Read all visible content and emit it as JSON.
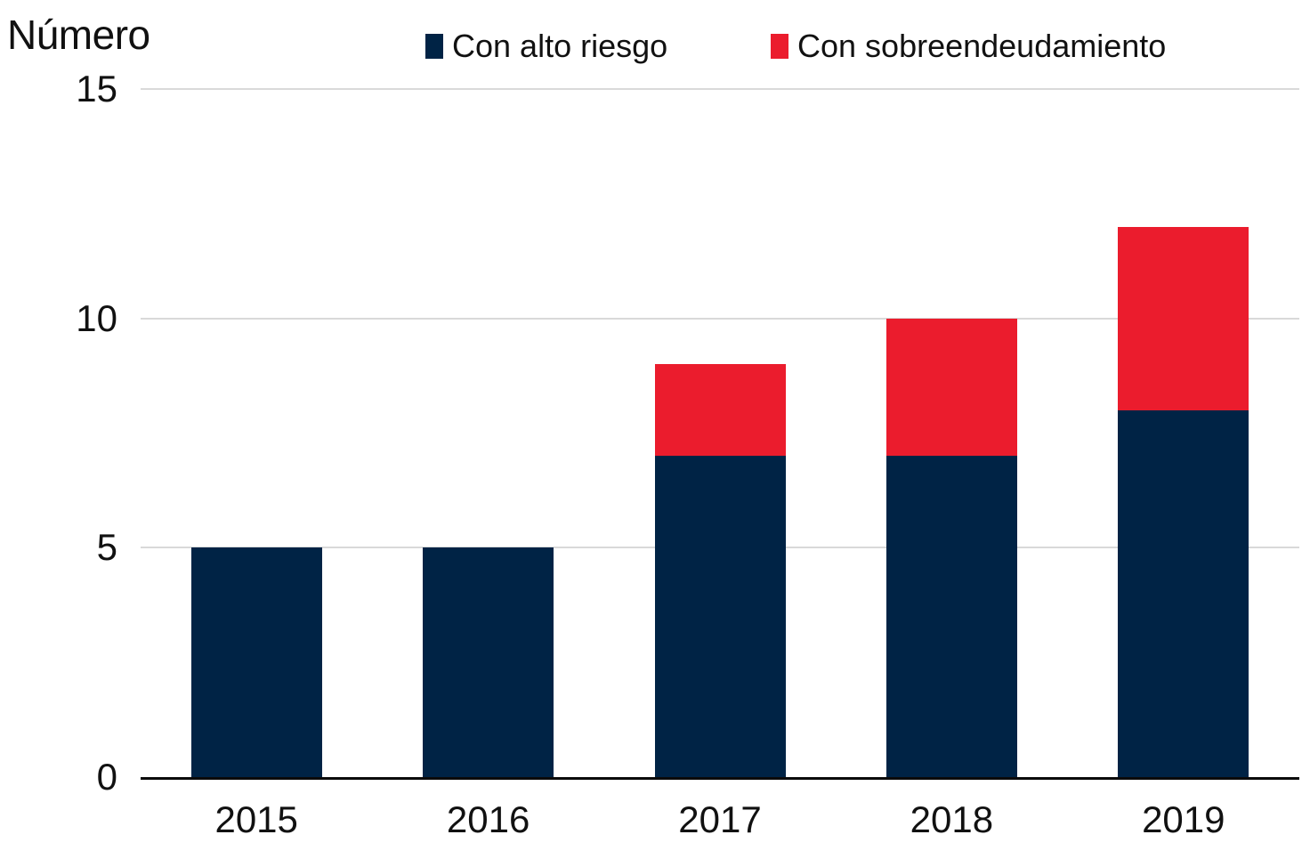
{
  "chart": {
    "title": "Número"
  },
  "chart_data": {
    "type": "bar",
    "stacked": true,
    "title": "Número",
    "xlabel": "",
    "ylabel": "Número",
    "categories": [
      "2015",
      "2016",
      "2017",
      "2018",
      "2019"
    ],
    "series": [
      {
        "name": "Con alto riesgo",
        "color": "#002345",
        "values": [
          5,
          5,
          7,
          7,
          8
        ]
      },
      {
        "name": "Con sobreendeudamiento",
        "color": "#EB1C2D",
        "values": [
          0,
          0,
          2,
          3,
          4
        ]
      }
    ],
    "totals": [
      5,
      5,
      9,
      10,
      12
    ],
    "ylim": [
      0,
      15
    ],
    "yticks": [
      0,
      5,
      10,
      15
    ],
    "grid": "horizontal",
    "gridline_color": "#d9d9d9",
    "axis_line_color": "#0b0b0b",
    "legend_position": "top"
  }
}
